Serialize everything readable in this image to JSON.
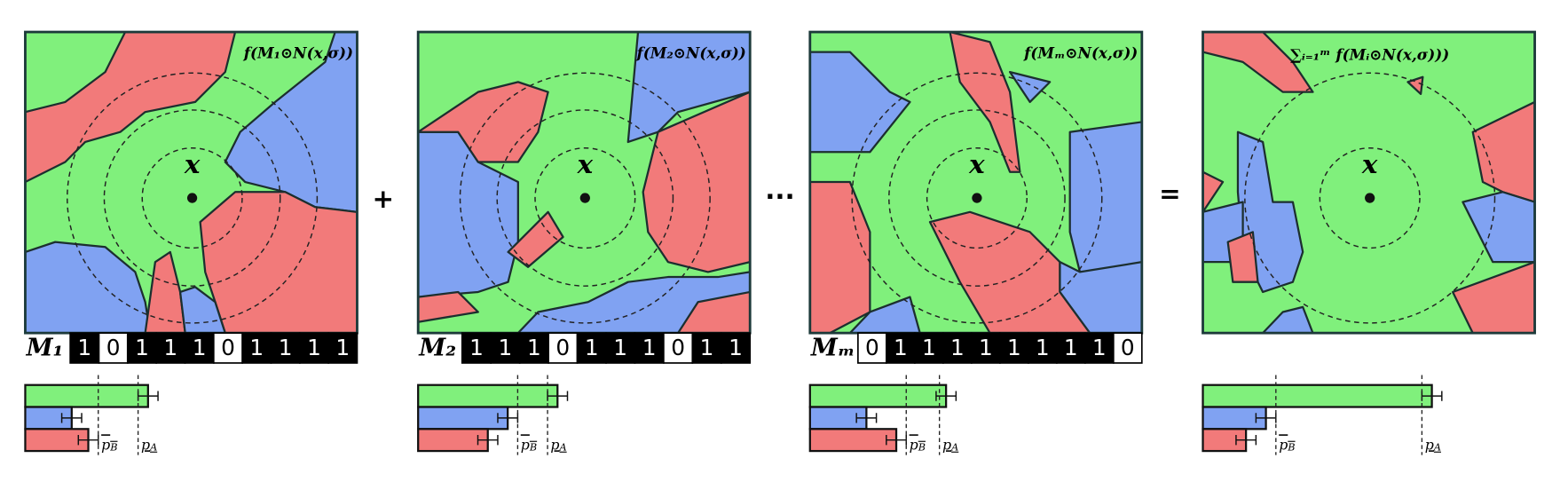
{
  "operators": [
    "+",
    "···",
    "="
  ],
  "bar_xlim": [
    0,
    1
  ],
  "panels": [
    {
      "function_label": "f(M₁⊙N(x,σ))",
      "point_label": "x",
      "mask_label": "M₁",
      "mask_bits": [
        "1",
        "0",
        "1",
        "1",
        "1",
        "0",
        "1",
        "1",
        "1",
        "1"
      ],
      "bars": {
        "values": [
          0.37,
          0.14,
          0.19
        ],
        "errors": [
          0.03,
          0.03,
          0.03
        ],
        "colors": [
          "#80f07c",
          "#80a2f2",
          "#f27a7a"
        ]
      },
      "p_B": 0.22,
      "p_A": 0.34,
      "p_B_label": {
        "base": "p",
        "sub": "B"
      },
      "p_A_label": {
        "base": "p",
        "sub": "A"
      }
    },
    {
      "function_label": "f(M₂⊙N(x,σ))",
      "point_label": "x",
      "mask_label": "M₂",
      "mask_bits": [
        "1",
        "1",
        "1",
        "0",
        "1",
        "1",
        "1",
        "0",
        "1",
        "1"
      ],
      "bars": {
        "values": [
          0.42,
          0.27,
          0.21
        ],
        "errors": [
          0.03,
          0.03,
          0.03
        ],
        "colors": [
          "#80f07c",
          "#80a2f2",
          "#f27a7a"
        ]
      },
      "p_B": 0.3,
      "p_A": 0.39,
      "p_B_label": {
        "base": "p",
        "sub": "B"
      },
      "p_A_label": {
        "base": "p",
        "sub": "A"
      }
    },
    {
      "function_label": "f(Mₘ⊙N(x,σ))",
      "point_label": "x",
      "mask_label": "Mₘ",
      "mask_bits": [
        "0",
        "1",
        "1",
        "1",
        "1",
        "1",
        "1",
        "1",
        "1",
        "0"
      ],
      "bars": {
        "values": [
          0.41,
          0.17,
          0.26
        ],
        "errors": [
          0.03,
          0.03,
          0.03
        ],
        "colors": [
          "#80f07c",
          "#80a2f2",
          "#f27a7a"
        ]
      },
      "p_B": 0.29,
      "p_A": 0.39,
      "p_B_label": {
        "base": "p",
        "sub": "B"
      },
      "p_A_label": {
        "base": "p",
        "sub": "A"
      }
    },
    {
      "function_label": "∑ᵢ₌₁ᵐ f(Mᵢ⊙N(x,σ)))",
      "point_label": "x",
      "bars": {
        "values": [
          0.69,
          0.19,
          0.13
        ],
        "errors": [
          0.03,
          0.03,
          0.03
        ],
        "colors": [
          "#80f07c",
          "#80a2f2",
          "#f27a7a"
        ]
      },
      "p_B": 0.22,
      "p_A": 0.66,
      "p_B_label": {
        "base": "p",
        "sub": "B"
      },
      "p_A_label": {
        "base": "p",
        "sub": "A"
      }
    }
  ]
}
